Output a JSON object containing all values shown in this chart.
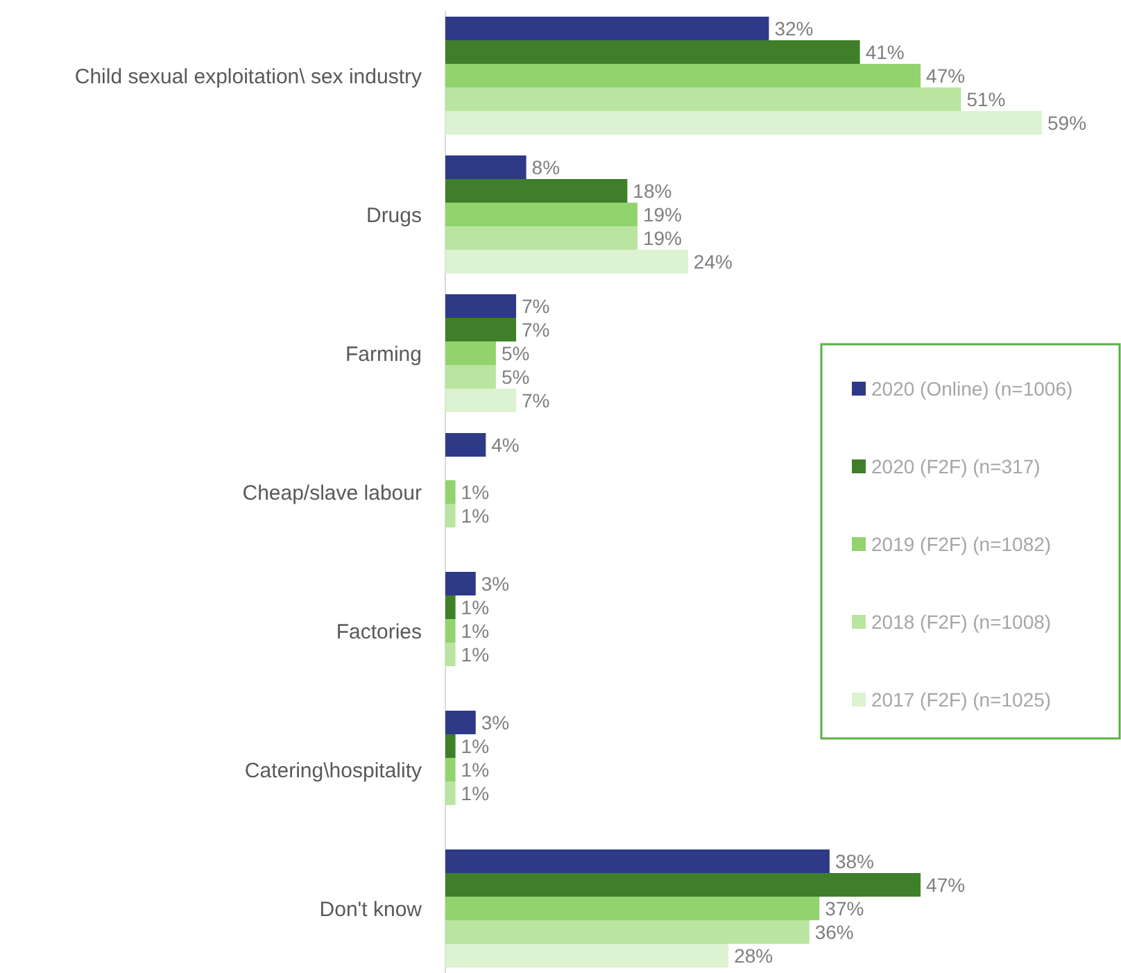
{
  "chart_data": {
    "type": "bar",
    "orientation": "horizontal",
    "legend": "right",
    "categories": [
      "Child sexual exploitation\\ sex industry",
      "Drugs",
      "Farming",
      "Cheap/slave labour",
      "Factories",
      "Catering\\hospitality",
      "Don't know"
    ],
    "series": [
      {
        "name": "2020 (Online) (n=1006)",
        "color": "#2e3a87",
        "values": [
          32,
          8,
          7,
          4,
          3,
          3,
          38
        ],
        "value_labels": [
          "32%",
          "8%",
          "7%",
          "4%",
          "3%",
          "3%",
          "38%"
        ]
      },
      {
        "name": "2020 (F2F) (n=317)",
        "color": "#3f7f2a",
        "values": [
          41,
          18,
          7,
          null,
          1,
          1,
          47
        ],
        "value_labels": [
          "41%",
          "18%",
          "7%",
          null,
          "1%",
          "1%",
          "47%"
        ]
      },
      {
        "name": "2019 (F2F) (n=1082)",
        "color": "#92d36e",
        "values": [
          47,
          19,
          5,
          1,
          1,
          1,
          37
        ],
        "value_labels": [
          "47%",
          "19%",
          "5%",
          "1%",
          "1%",
          "1%",
          "37%"
        ]
      },
      {
        "name": "2018 (F2F) (n=1008)",
        "color": "#b9e5a0",
        "values": [
          51,
          19,
          5,
          1,
          1,
          1,
          36
        ],
        "value_labels": [
          "51%",
          "19%",
          "5%",
          "1%",
          "1%",
          "1%",
          "36%"
        ]
      },
      {
        "name": "2017 (F2F) (n=1025)",
        "color": "#dcf2d0",
        "values": [
          59,
          24,
          7,
          null,
          null,
          null,
          28
        ],
        "value_labels": [
          "59%",
          "24%",
          "7%",
          null,
          null,
          null,
          "28%"
        ]
      }
    ]
  }
}
